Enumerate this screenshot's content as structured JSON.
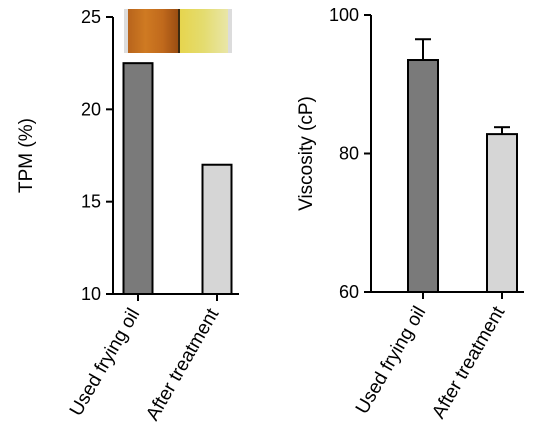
{
  "chart_data": [
    {
      "type": "bar",
      "categories": [
        "Used frying oil",
        "After treatment"
      ],
      "values": [
        22.5,
        17.0
      ],
      "ylabel": "TPM (%)",
      "ylim": [
        10,
        25
      ],
      "yticks": [
        "10",
        "15",
        "20",
        "25"
      ],
      "bar_colors": [
        "#7a7a7a",
        "#d6d6d6"
      ],
      "error_bars": false,
      "grid": false,
      "inset_image": "oil color comparison: dark amber used oil vs light yellow treated oil"
    },
    {
      "type": "bar",
      "categories": [
        "Used frying oil",
        "After treatment"
      ],
      "values": [
        93.5,
        82.8
      ],
      "errors": [
        3.0,
        1.0
      ],
      "ylabel": "Viscosity (cP)",
      "ylim": [
        60,
        100
      ],
      "yticks": [
        "60",
        "80",
        "100"
      ],
      "bar_colors": [
        "#7a7a7a",
        "#d6d6d6"
      ],
      "error_bars": true,
      "grid": false
    }
  ]
}
